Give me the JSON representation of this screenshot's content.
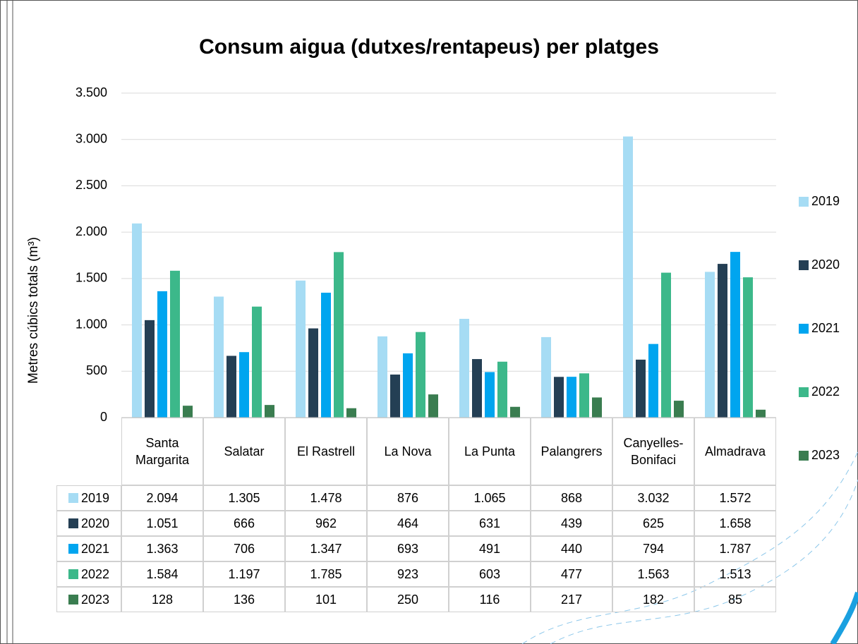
{
  "chart_data": {
    "type": "bar",
    "title": "Consum aigua (dutxes/rentapeus) per platges",
    "y_label": "Metres cúbics totals (m³)",
    "categories": [
      "Santa Margarita",
      "Salatar",
      "El Rastrell",
      "La Nova",
      "La Punta",
      "Palangrers",
      "Canyelles-Bonifaci",
      "Almadrava"
    ],
    "series": [
      {
        "name": "2019",
        "color": "#a6dcf4",
        "values": [
          2094,
          1305,
          1478,
          876,
          1065,
          868,
          3032,
          1572
        ],
        "value_labels": [
          "2.094",
          "1.305",
          "1.478",
          "876",
          "1.065",
          "868",
          "3.032",
          "1.572"
        ]
      },
      {
        "name": "2020",
        "color": "#243f54",
        "values": [
          1051,
          666,
          962,
          464,
          631,
          439,
          625,
          1658
        ],
        "value_labels": [
          "1.051",
          "666",
          "962",
          "464",
          "631",
          "439",
          "625",
          "1.658"
        ]
      },
      {
        "name": "2021",
        "color": "#00a5ef",
        "values": [
          1363,
          706,
          1347,
          693,
          491,
          440,
          794,
          1787
        ],
        "value_labels": [
          "1.363",
          "706",
          "1.347",
          "693",
          "491",
          "440",
          "794",
          "1.787"
        ]
      },
      {
        "name": "2022",
        "color": "#3cb88a",
        "values": [
          1584,
          1197,
          1785,
          923,
          603,
          477,
          1563,
          1513
        ],
        "value_labels": [
          "1.584",
          "1.197",
          "1.785",
          "923",
          "603",
          "477",
          "1.563",
          "1.513"
        ]
      },
      {
        "name": "2023",
        "color": "#3a7d50",
        "values": [
          128,
          136,
          101,
          250,
          116,
          217,
          182,
          85
        ],
        "value_labels": [
          "128",
          "136",
          "101",
          "250",
          "116",
          "217",
          "182",
          "85"
        ]
      }
    ],
    "ylim": [
      0,
      3500
    ],
    "yticks": [
      0,
      500,
      {
        "value": 1000,
        "label": "1.000"
      },
      {
        "value": 1500,
        "label": "1.500"
      },
      {
        "value": 2000,
        "label": "2.000"
      },
      {
        "value": 2500,
        "label": "2.500"
      },
      {
        "value": 3000,
        "label": "3.000"
      },
      {
        "value": 3500,
        "label": "3.500"
      }
    ],
    "grid": true,
    "legend": "right"
  }
}
